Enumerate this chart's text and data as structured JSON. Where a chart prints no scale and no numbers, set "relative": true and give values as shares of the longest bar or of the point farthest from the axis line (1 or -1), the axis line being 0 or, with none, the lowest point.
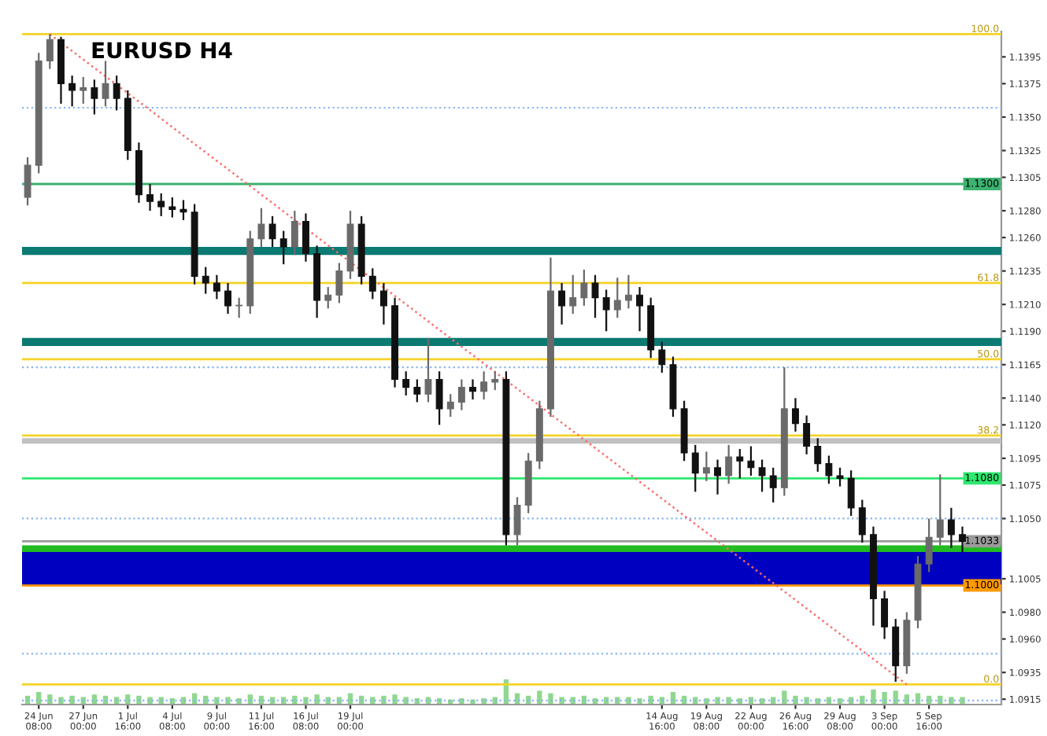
{
  "chart_data": [
    {
      "type": "candlestick",
      "title": "EURUSD H4",
      "categories": [
        null,
        "24 Jun 08:00",
        null,
        null,
        null,
        "27 Jun 00:00",
        null,
        null,
        null,
        "1 Jul 16:00",
        null,
        null,
        null,
        "4 Jul 08:00",
        null,
        null,
        null,
        "9 Jul 00:00",
        null,
        null,
        null,
        "11 Jul 16:00",
        null,
        null,
        null,
        "16 Jul 08:00",
        null,
        null,
        null,
        "19 Jul 00:00",
        null,
        null,
        null,
        null,
        null,
        null,
        null,
        null,
        null,
        null,
        null,
        null,
        null,
        null,
        null,
        null,
        null,
        null,
        null,
        null,
        null,
        null,
        null,
        null,
        null,
        null,
        null,
        "14 Aug 16:00",
        null,
        null,
        null,
        "19 Aug 08:00",
        null,
        null,
        null,
        "22 Aug 00:00",
        null,
        null,
        null,
        "26 Aug 16:00",
        null,
        null,
        null,
        "29 Aug 08:00",
        null,
        null,
        null,
        "3 Sep 00:00",
        null,
        null,
        null,
        "5 Sep 16:00",
        null,
        null,
        null
      ],
      "ohlc": [
        [
          1.129,
          1.132,
          1.1284,
          1.1314
        ],
        [
          1.1314,
          1.1398,
          1.1308,
          1.1392
        ],
        [
          1.1392,
          1.1412,
          1.1386,
          1.1408
        ],
        [
          1.1408,
          1.141,
          1.136,
          1.1375
        ],
        [
          1.1375,
          1.1381,
          1.1358,
          1.137
        ],
        [
          1.137,
          1.138,
          1.136,
          1.1372
        ],
        [
          1.1372,
          1.1378,
          1.1352,
          1.1364
        ],
        [
          1.1364,
          1.1392,
          1.1358,
          1.1375
        ],
        [
          1.1375,
          1.1381,
          1.1355,
          1.1364
        ],
        [
          1.1364,
          1.137,
          1.1318,
          1.1325
        ],
        [
          1.1325,
          1.1331,
          1.1286,
          1.1292
        ],
        [
          1.1292,
          1.13,
          1.128,
          1.1287
        ],
        [
          1.1287,
          1.1293,
          1.1276,
          1.1283
        ],
        [
          1.1283,
          1.129,
          1.1275,
          1.1281
        ],
        [
          1.1281,
          1.1288,
          1.1273,
          1.1279
        ],
        [
          1.1279,
          1.1285,
          1.1225,
          1.1231
        ],
        [
          1.1231,
          1.1238,
          1.1218,
          1.1226
        ],
        [
          1.1226,
          1.1232,
          1.1214,
          1.122
        ],
        [
          1.122,
          1.1226,
          1.1203,
          1.1209
        ],
        [
          1.1209,
          1.1215,
          1.12,
          1.1209
        ],
        [
          1.1209,
          1.1265,
          1.1203,
          1.1259
        ],
        [
          1.1259,
          1.1282,
          1.1253,
          1.127
        ],
        [
          1.127,
          1.1276,
          1.1253,
          1.1259
        ],
        [
          1.1259,
          1.1265,
          1.124,
          1.1253
        ],
        [
          1.1253,
          1.128,
          1.1247,
          1.1272
        ],
        [
          1.1272,
          1.1278,
          1.1242,
          1.1248
        ],
        [
          1.1248,
          1.1254,
          1.12,
          1.1213
        ],
        [
          1.1213,
          1.1223,
          1.1207,
          1.1217
        ],
        [
          1.1217,
          1.1241,
          1.1211,
          1.1235
        ],
        [
          1.1235,
          1.128,
          1.1229,
          1.127
        ],
        [
          1.127,
          1.1276,
          1.1225,
          1.1231
        ],
        [
          1.1231,
          1.1237,
          1.1214,
          1.122
        ],
        [
          1.122,
          1.1226,
          1.1195,
          1.1209
        ],
        [
          1.1209,
          1.1215,
          1.1148,
          1.1154
        ],
        [
          1.1154,
          1.116,
          1.1142,
          1.1148
        ],
        [
          1.1148,
          1.1154,
          1.1137,
          1.1143
        ],
        [
          1.1143,
          1.1185,
          1.1137,
          1.1154
        ],
        [
          1.1154,
          1.116,
          1.112,
          1.1132
        ],
        [
          1.1132,
          1.1143,
          1.1126,
          1.1137
        ],
        [
          1.1137,
          1.1154,
          1.1131,
          1.1148
        ],
        [
          1.1148,
          1.1154,
          1.1139,
          1.1145
        ],
        [
          1.1145,
          1.116,
          1.1139,
          1.1152
        ],
        [
          1.1152,
          1.116,
          1.1146,
          1.1154
        ],
        [
          1.1154,
          1.116,
          1.103,
          1.1038
        ],
        [
          1.1038,
          1.1066,
          1.103,
          1.106
        ],
        [
          1.106,
          1.1099,
          1.1054,
          1.1093
        ],
        [
          1.1093,
          1.1138,
          1.1087,
          1.1132
        ],
        [
          1.1132,
          1.1245,
          1.1126,
          1.122
        ],
        [
          1.122,
          1.1226,
          1.1195,
          1.1209
        ],
        [
          1.1209,
          1.1232,
          1.1203,
          1.1215
        ],
        [
          1.1215,
          1.1236,
          1.1209,
          1.1226
        ],
        [
          1.1226,
          1.1232,
          1.12,
          1.1215
        ],
        [
          1.1215,
          1.1221,
          1.119,
          1.1206
        ],
        [
          1.1206,
          1.123,
          1.12,
          1.1213
        ],
        [
          1.1213,
          1.1232,
          1.1207,
          1.1217
        ],
        [
          1.1217,
          1.1223,
          1.119,
          1.1209
        ],
        [
          1.1209,
          1.1215,
          1.117,
          1.1176
        ],
        [
          1.1176,
          1.1182,
          1.1159,
          1.1165
        ],
        [
          1.1165,
          1.1171,
          1.1126,
          1.1132
        ],
        [
          1.1132,
          1.1138,
          1.1093,
          1.1099
        ],
        [
          1.1099,
          1.1105,
          1.107,
          1.1084
        ],
        [
          1.1084,
          1.11,
          1.1078,
          1.1088
        ],
        [
          1.1088,
          1.1094,
          1.1068,
          1.1082
        ],
        [
          1.1082,
          1.1105,
          1.1076,
          1.1096
        ],
        [
          1.1096,
          1.1102,
          1.108,
          1.1093
        ],
        [
          1.1093,
          1.1104,
          1.1082,
          1.1088
        ],
        [
          1.1088,
          1.1094,
          1.107,
          1.1082
        ],
        [
          1.1082,
          1.1088,
          1.1062,
          1.1073
        ],
        [
          1.1073,
          1.1163,
          1.1067,
          1.1132
        ],
        [
          1.1132,
          1.114,
          1.1115,
          1.1121
        ],
        [
          1.1121,
          1.1127,
          1.1098,
          1.1104
        ],
        [
          1.1104,
          1.111,
          1.1085,
          1.1091
        ],
        [
          1.1091,
          1.1097,
          1.1076,
          1.1082
        ],
        [
          1.1082,
          1.1088,
          1.1074,
          1.108
        ],
        [
          1.108,
          1.1086,
          1.1052,
          1.1058
        ],
        [
          1.1058,
          1.1064,
          1.1032,
          1.1038
        ],
        [
          1.1038,
          1.1044,
          1.097,
          1.099
        ],
        [
          1.099,
          1.0996,
          1.096,
          1.0969
        ],
        [
          1.0969,
          1.0975,
          1.0928,
          1.094
        ],
        [
          1.094,
          1.098,
          1.0934,
          1.0974
        ],
        [
          1.0974,
          1.1022,
          1.0968,
          1.1016
        ],
        [
          1.1016,
          1.105,
          1.101,
          1.1036
        ],
        [
          1.1036,
          1.1083,
          1.103,
          1.1049
        ],
        [
          1.1049,
          1.1058,
          1.1028,
          1.1038
        ],
        [
          1.1038,
          1.1044,
          1.1025,
          1.1033
        ]
      ],
      "series": [
        {
          "type": "line",
          "color": "#ff6b6b",
          "line_style": "dotted",
          "values": [
            null,
            null,
            1.1412,
            null,
            null,
            null,
            null,
            null,
            null,
            null,
            null,
            null,
            null,
            null,
            null,
            null,
            null,
            null,
            null,
            null,
            null,
            null,
            null,
            null,
            null,
            null,
            null,
            null,
            null,
            null,
            null,
            null,
            null,
            null,
            null,
            null,
            null,
            null,
            null,
            null,
            null,
            null,
            null,
            null,
            null,
            null,
            null,
            null,
            null,
            null,
            null,
            null,
            null,
            null,
            null,
            null,
            null,
            null,
            null,
            null,
            null,
            null,
            null,
            null,
            null,
            null,
            null,
            null,
            null,
            null,
            null,
            null,
            null,
            null,
            null,
            null,
            null,
            null,
            null,
            1.0926,
            null,
            null,
            null,
            null,
            null
          ]
        }
      ],
      "ylim": [
        1.0911,
        1.1414
      ],
      "yticks": [
        {
          "value": 1.0915,
          "label": "1.0915"
        },
        {
          "value": 1.0935,
          "label": "1.0935"
        },
        {
          "value": 1.096,
          "label": "1.0960"
        },
        {
          "value": 1.098,
          "label": "1.0980"
        },
        {
          "value": 1.1005,
          "label": "1.1005"
        },
        {
          "value": 1.105,
          "label": "1.1050"
        },
        {
          "value": 1.1075,
          "label": "1.1075"
        },
        {
          "value": 1.1095,
          "label": "1.1095"
        },
        {
          "value": 1.112,
          "label": "1.1120"
        },
        {
          "value": 1.114,
          "label": "1.1140"
        },
        {
          "value": 1.1165,
          "label": "1.1165"
        },
        {
          "value": 1.119,
          "label": "1.1190"
        },
        {
          "value": 1.121,
          "label": "1.1210"
        },
        {
          "value": 1.1235,
          "label": "1.1235"
        },
        {
          "value": 1.126,
          "label": "1.1260"
        },
        {
          "value": 1.128,
          "label": "1.1280"
        },
        {
          "value": 1.1305,
          "label": "1.1305"
        },
        {
          "value": 1.1325,
          "label": "1.1325"
        },
        {
          "value": 1.135,
          "label": "1.1350"
        },
        {
          "value": 1.1375,
          "label": "1.1375"
        },
        {
          "value": 1.1395,
          "label": "1.1395"
        }
      ],
      "annotations": [
        {
          "text": "100.0",
          "y": 1.1412
        },
        {
          "text": "61.8",
          "y": 1.1226
        },
        {
          "text": "50.0",
          "y": 1.1169
        },
        {
          "text": "38.2",
          "y": 1.1112
        },
        {
          "text": "0.0",
          "y": 1.0926
        }
      ],
      "ref_lines": [
        {
          "axis": "y",
          "value": 1.1412,
          "color": "#f5d327"
        },
        {
          "axis": "y",
          "value": 1.1357,
          "color": "#87b5f0",
          "line_style": "dotted"
        },
        {
          "axis": "y",
          "value": 1.13,
          "label": "1.1300",
          "color": "#3cb371"
        },
        {
          "axis": "y",
          "value": 1.1226,
          "color": "#f5d327"
        },
        {
          "axis": "y",
          "value": 1.1169,
          "color": "#f5d327"
        },
        {
          "axis": "y",
          "value": 1.1163,
          "color": "#87b5f0",
          "line_style": "dotted"
        },
        {
          "axis": "y",
          "value": 1.1112,
          "color": "#f5d327"
        },
        {
          "axis": "y",
          "value": 1.108,
          "label": "1.1080",
          "color": "#2ee86f"
        },
        {
          "axis": "y",
          "value": 1.105,
          "color": "#87b5f0",
          "line_style": "dotted"
        },
        {
          "axis": "y",
          "value": 1.1033,
          "label": "1.1033",
          "color": "#9a9a9a"
        },
        {
          "axis": "y",
          "value": 1.1,
          "label": "1.1000",
          "color": "#ff9900"
        },
        {
          "axis": "y",
          "value": 1.0949,
          "color": "#87b5f0",
          "line_style": "dotted"
        },
        {
          "axis": "y",
          "value": 1.0926,
          "color": "#f5d327"
        },
        {
          "axis": "y",
          "value": 1.0914,
          "color": "#87b5f0",
          "line_style": "dotted"
        }
      ],
      "bands": [
        {
          "axis": "y",
          "from": 1.1247,
          "to": 1.1253,
          "color": "#0a7a72"
        },
        {
          "axis": "y",
          "from": 1.1179,
          "to": 1.1185,
          "color": "#0a7a72"
        },
        {
          "axis": "y",
          "from": 1.1106,
          "to": 1.111,
          "color": "#c0c0c0"
        },
        {
          "axis": "y",
          "from": 1.1025,
          "to": 1.103,
          "color": "#22bb22"
        },
        {
          "axis": "y",
          "from": 1.1,
          "to": 1.1025,
          "color": "#0000c0"
        }
      ],
      "grid": false
    },
    {
      "type": "bar",
      "relative": true,
      "color": "#8fd88f",
      "categories": [
        null,
        null,
        null,
        null,
        null,
        null,
        null,
        null,
        null,
        null,
        null,
        null,
        null,
        null,
        null,
        null,
        null,
        null,
        null,
        null,
        null,
        null,
        null,
        null,
        null,
        null,
        null,
        null,
        null,
        null,
        null,
        null,
        null,
        null,
        null,
        null,
        null,
        null,
        null,
        null,
        null,
        null,
        null,
        null,
        null,
        null,
        null,
        null,
        null,
        null,
        null,
        null,
        null,
        null,
        null,
        null,
        null,
        null,
        null,
        null,
        null,
        null,
        null,
        null,
        null,
        null,
        null,
        null,
        null,
        null,
        null,
        null,
        null,
        null,
        null,
        null,
        null,
        null,
        null,
        null,
        null,
        null,
        null,
        null,
        null
      ],
      "values": [
        0.35,
        0.5,
        0.4,
        0.3,
        0.35,
        0.3,
        0.4,
        0.35,
        0.3,
        0.4,
        0.35,
        0.3,
        0.3,
        0.25,
        0.3,
        0.45,
        0.35,
        0.3,
        0.3,
        0.25,
        0.4,
        0.35,
        0.3,
        0.3,
        0.35,
        0.3,
        0.4,
        0.3,
        0.3,
        0.45,
        0.35,
        0.3,
        0.35,
        0.4,
        0.3,
        0.25,
        0.3,
        0.25,
        0.2,
        0.25,
        0.2,
        0.25,
        0.3,
        1.0,
        0.45,
        0.35,
        0.55,
        0.45,
        0.3,
        0.3,
        0.35,
        0.25,
        0.3,
        0.3,
        0.3,
        0.25,
        0.35,
        0.3,
        0.5,
        0.35,
        0.3,
        0.25,
        0.3,
        0.3,
        0.25,
        0.3,
        0.25,
        0.3,
        0.55,
        0.35,
        0.3,
        0.25,
        0.3,
        0.25,
        0.3,
        0.35,
        0.6,
        0.5,
        0.55,
        0.4,
        0.45,
        0.35,
        0.35,
        0.3,
        0.3
      ]
    }
  ]
}
